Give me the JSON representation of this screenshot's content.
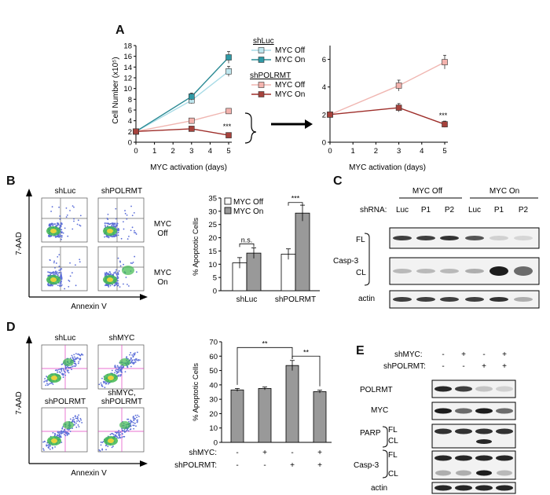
{
  "panels": {
    "a": "A",
    "b": "B",
    "c": "C",
    "d": "D",
    "e": "E"
  },
  "chart_data": [
    {
      "id": "A-left",
      "type": "line",
      "title": "",
      "xlabel": "MYC activation (days)",
      "ylabel": "Cell Number (x10⁵)",
      "x": [
        0,
        3,
        5
      ],
      "xticks": [
        "0",
        "1",
        "2",
        "3",
        "4",
        "5"
      ],
      "yticks": [
        "0",
        "2",
        "4",
        "6",
        "8",
        "10",
        "12",
        "14",
        "16",
        "18"
      ],
      "xlim": [
        0,
        5
      ],
      "ylim": [
        0,
        18
      ],
      "legend_groups": [
        "shLuc",
        "shPOLRMT"
      ],
      "series": [
        {
          "name": "MYC Off",
          "group": "shLuc",
          "color": "#a8dbe6",
          "marker": "#bfe6ee",
          "values": [
            2,
            7.8,
            13.2
          ]
        },
        {
          "name": "MYC On",
          "group": "shLuc",
          "color": "#2a8a94",
          "marker": "#2f9aa6",
          "values": [
            2,
            8.5,
            15.8
          ]
        },
        {
          "name": "MYC Off",
          "group": "shPOLRMT",
          "color": "#f0b6b1",
          "marker": "#f4b3ae",
          "values": [
            2,
            4.0,
            5.8
          ]
        },
        {
          "name": "MYC On",
          "group": "shPOLRMT",
          "color": "#9e2e2a",
          "marker": "#a6423c",
          "values": [
            2,
            2.5,
            1.3
          ]
        }
      ],
      "annotation": "***"
    },
    {
      "id": "A-right",
      "type": "line",
      "xlabel": "MYC activation (days)",
      "ylabel": "",
      "x": [
        0,
        3,
        5
      ],
      "xticks": [
        "0",
        "1",
        "2",
        "3",
        "4",
        "5"
      ],
      "yticks": [
        "0",
        "2",
        "4",
        "6"
      ],
      "xlim": [
        0,
        5
      ],
      "ylim": [
        0,
        7
      ],
      "series": [
        {
          "name": "shPOLRMT MYC Off",
          "color": "#f0b6b1",
          "marker": "#f4b3ae",
          "values": [
            2,
            4.1,
            5.8
          ]
        },
        {
          "name": "shPOLRMT MYC On",
          "color": "#9e2e2a",
          "marker": "#a6423c",
          "values": [
            2,
            2.5,
            1.3
          ]
        }
      ],
      "annotation": "***"
    },
    {
      "id": "B-bar",
      "type": "bar",
      "ylabel": "% Apoptotic Cells",
      "categories": [
        "shLuc",
        "shPOLRMT"
      ],
      "yticks": [
        "0",
        "5",
        "10",
        "15",
        "20",
        "25",
        "30",
        "35"
      ],
      "ylim": [
        0,
        35
      ],
      "series": [
        {
          "name": "MYC Off",
          "color": "#ffffff",
          "values": [
            10.5,
            13.8
          ]
        },
        {
          "name": "MYC On",
          "color": "#999999",
          "values": [
            14.2,
            29.3
          ]
        }
      ],
      "annotations": [
        "n.s.",
        "***"
      ]
    },
    {
      "id": "D-bar",
      "type": "bar",
      "ylabel": "% Apoptotic Cells",
      "yticks": [
        "0",
        "10",
        "20",
        "30",
        "40",
        "50",
        "60",
        "70"
      ],
      "ylim": [
        0,
        70
      ],
      "values": [
        36.5,
        37.5,
        53.5,
        35.3
      ],
      "row_labels": [
        "shMYC:",
        "shPOLRMT:"
      ],
      "row_values": [
        [
          "-",
          "+",
          "-",
          "+"
        ],
        [
          "-",
          "-",
          "+",
          "+"
        ]
      ],
      "annotations": [
        "**",
        "**"
      ]
    }
  ],
  "panelB": {
    "flow": {
      "y_axis": "7-AAD",
      "x_axis": "Annexin V",
      "col1": "shLuc",
      "col2": "shPOLRMT",
      "row1a": "MYC",
      "row1b": "Off",
      "row2a": "MYC",
      "row2b": "On"
    }
  },
  "panelC": {
    "group1": "MYC Off",
    "group2": "MYC On",
    "shrna": "shRNA:",
    "lanes": [
      "Luc",
      "P1",
      "P2",
      "Luc",
      "P1",
      "P2"
    ],
    "casp3": "Casp-3",
    "fl": "FL",
    "cl": "CL",
    "actin": "actin"
  },
  "panelD": {
    "flow": {
      "y_axis": "7-AAD",
      "x_axis": "Annexin V",
      "c1": "shLuc",
      "c2": "shMYC",
      "c3": "shPOLRMT",
      "c4a": "shMYC,",
      "c4b": "shPOLRMT"
    }
  },
  "panelE": {
    "shmyc": "shMYC:",
    "shpolrmt": "shPOLRMT:",
    "row1": [
      "-",
      "+",
      "-",
      "+"
    ],
    "row2": [
      "-",
      "-",
      "+",
      "+"
    ],
    "polrmt": "POLRMT",
    "myc": "MYC",
    "parp": "PARP",
    "fl": "FL",
    "cl": "CL",
    "casp3": "Casp-3",
    "actin": "actin"
  }
}
